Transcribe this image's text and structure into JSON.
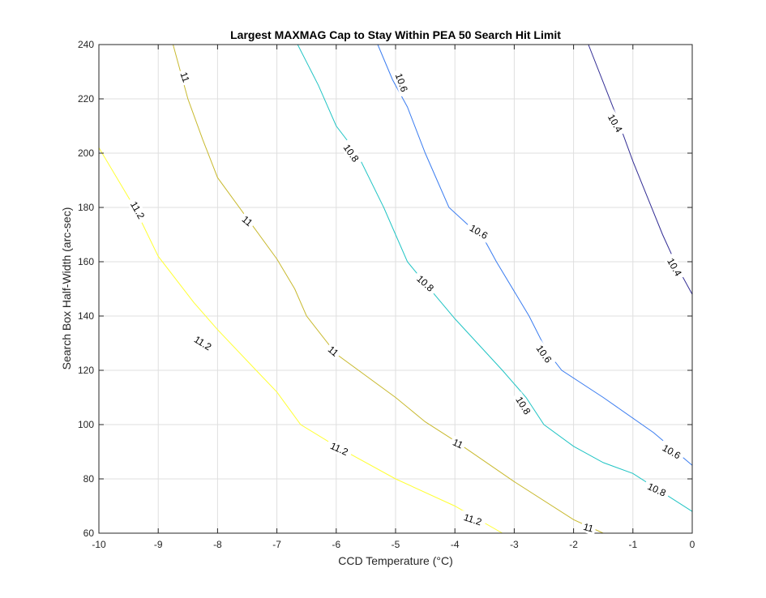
{
  "chart_data": {
    "type": "contour",
    "title": "Largest MAXMAG Cap to Stay Within PEA 50 Search Hit Limit",
    "xlabel": "CCD Temperature (°C)",
    "ylabel": "Search Box Half-Width (arc-sec)",
    "xlim": [
      -10,
      0
    ],
    "ylim": [
      60,
      240
    ],
    "x_ticks": [
      -10,
      -9,
      -8,
      -7,
      -6,
      -5,
      -4,
      -3,
      -2,
      -1,
      0
    ],
    "y_ticks": [
      60,
      80,
      100,
      120,
      140,
      160,
      180,
      200,
      220,
      240
    ],
    "grid": true,
    "legend": "none",
    "levels": [
      {
        "value": 11.2,
        "color": "#ffff33",
        "points": [
          [
            -10,
            202
          ],
          [
            -9.4,
            180
          ],
          [
            -9,
            162
          ],
          [
            -8.4,
            145
          ],
          [
            -8,
            135
          ],
          [
            -7.35,
            120
          ],
          [
            -7,
            112
          ],
          [
            -6.6,
            100
          ],
          [
            -6,
            92
          ],
          [
            -5,
            80
          ],
          [
            -4,
            70
          ],
          [
            -3.2,
            60
          ]
        ],
        "labels": [
          {
            "text": "11.2",
            "x": -9.35,
            "y": 179,
            "angle": 60
          },
          {
            "text": "11.2",
            "x": -8.25,
            "y": 130,
            "angle": 32
          },
          {
            "text": "11.2",
            "x": -5.95,
            "y": 91,
            "angle": 24
          },
          {
            "text": "11.2",
            "x": -3.7,
            "y": 65,
            "angle": 18
          }
        ]
      },
      {
        "value": 11,
        "color": "#c8b92e",
        "points": [
          [
            -8.75,
            240
          ],
          [
            -8.5,
            220
          ],
          [
            -8.25,
            205
          ],
          [
            -8,
            191
          ],
          [
            -7.5,
            176
          ],
          [
            -7,
            161
          ],
          [
            -6.7,
            150
          ],
          [
            -6.5,
            140
          ],
          [
            -6,
            126
          ],
          [
            -5,
            110
          ],
          [
            -4.5,
            101
          ],
          [
            -4,
            94
          ],
          [
            -3,
            79
          ],
          [
            -2,
            65
          ],
          [
            -1.5,
            60
          ]
        ],
        "labels": [
          {
            "text": "11",
            "x": -8.55,
            "y": 228,
            "angle": 70
          },
          {
            "text": "11",
            "x": -7.5,
            "y": 175,
            "angle": 40
          },
          {
            "text": "11",
            "x": -6.05,
            "y": 127,
            "angle": 40
          },
          {
            "text": "11",
            "x": -3.95,
            "y": 93,
            "angle": 25
          },
          {
            "text": "11",
            "x": -1.75,
            "y": 62,
            "angle": 15
          }
        ]
      },
      {
        "value": 10.8,
        "color": "#21c4c4",
        "points": [
          [
            -6.65,
            240
          ],
          [
            -6.3,
            225
          ],
          [
            -6,
            210
          ],
          [
            -5.65,
            200
          ],
          [
            -5.2,
            180
          ],
          [
            -5,
            170
          ],
          [
            -4.8,
            160
          ],
          [
            -4.5,
            152
          ],
          [
            -4,
            139
          ],
          [
            -3.2,
            120
          ],
          [
            -2.8,
            110
          ],
          [
            -2.5,
            100
          ],
          [
            -2,
            92
          ],
          [
            -1.5,
            86
          ],
          [
            -1,
            82
          ],
          [
            0,
            68
          ]
        ],
        "labels": [
          {
            "text": "10.8",
            "x": -5.75,
            "y": 200,
            "angle": 55
          },
          {
            "text": "10.8",
            "x": -4.5,
            "y": 152,
            "angle": 42
          },
          {
            "text": "10.8",
            "x": -2.85,
            "y": 107,
            "angle": 58
          },
          {
            "text": "10.8",
            "x": -0.6,
            "y": 76,
            "angle": 25
          }
        ]
      },
      {
        "value": 10.6,
        "color": "#3a7cf0",
        "points": [
          [
            -5.3,
            240
          ],
          [
            -5.05,
            227
          ],
          [
            -4.8,
            217
          ],
          [
            -4.5,
            200
          ],
          [
            -4.1,
            180
          ],
          [
            -3.5,
            168
          ],
          [
            -3.3,
            160
          ],
          [
            -2.75,
            140
          ],
          [
            -2.45,
            127
          ],
          [
            -2.2,
            120
          ],
          [
            -1.5,
            110
          ],
          [
            -0.65,
            97
          ],
          [
            0,
            85
          ]
        ],
        "labels": [
          {
            "text": "10.6",
            "x": -4.9,
            "y": 226,
            "angle": 70
          },
          {
            "text": "10.6",
            "x": -3.6,
            "y": 171,
            "angle": 30
          },
          {
            "text": "10.6",
            "x": -2.5,
            "y": 126,
            "angle": 55
          },
          {
            "text": "10.6",
            "x": -0.35,
            "y": 90,
            "angle": 30
          }
        ]
      },
      {
        "value": 10.4,
        "color": "#312c94",
        "points": [
          [
            -1.75,
            240
          ],
          [
            -1.3,
            215
          ],
          [
            -1,
            197
          ],
          [
            -0.5,
            170
          ],
          [
            -0.25,
            158
          ],
          [
            0,
            148
          ]
        ],
        "labels": [
          {
            "text": "10.4",
            "x": -1.3,
            "y": 211,
            "angle": 60
          },
          {
            "text": "10.4",
            "x": -0.3,
            "y": 158,
            "angle": 60
          }
        ]
      }
    ]
  }
}
